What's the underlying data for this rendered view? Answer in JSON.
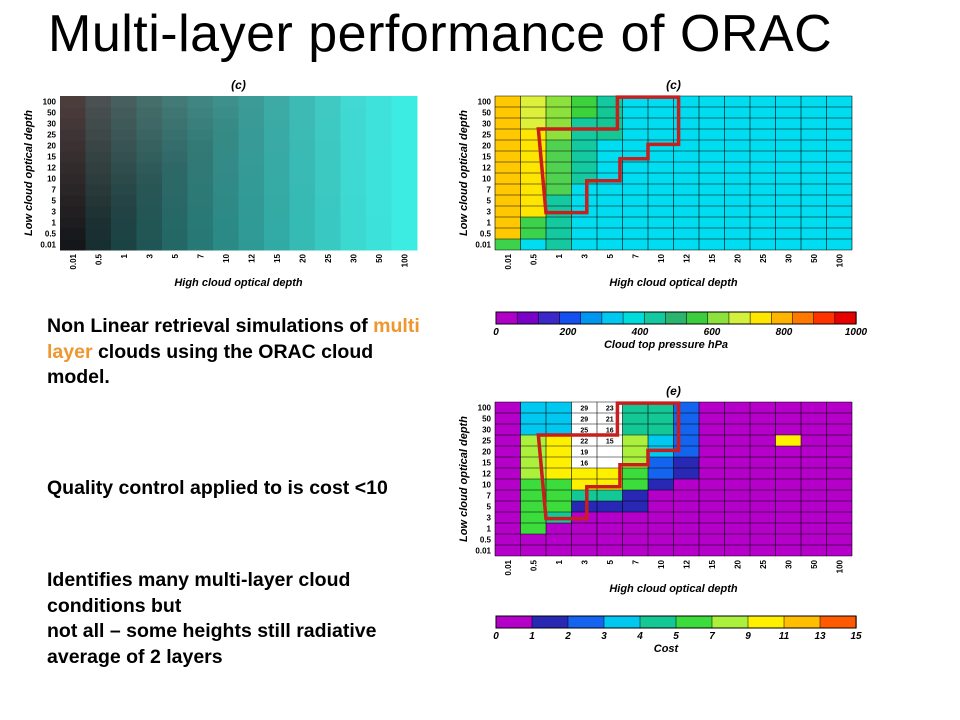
{
  "title": "Multi-layer performance of ORAC",
  "axes": {
    "x_title": "High cloud optical depth",
    "y_title": "Low cloud optical depth",
    "ticks": [
      "0.01",
      "0.5",
      "1",
      "3",
      "5",
      "7",
      "10",
      "12",
      "15",
      "20",
      "25",
      "30",
      "50",
      "100"
    ]
  },
  "panels": {
    "rgb_label": "(c)",
    "ctp_label": "(c)",
    "cost_label": "(e)"
  },
  "colorbars": {
    "ctp": {
      "title": "Cloud top pressure hPa",
      "ticks": [
        "0",
        "200",
        "400",
        "600",
        "800",
        "1000"
      ],
      "colors": [
        "#b000c8",
        "#7a00c8",
        "#3c28c8",
        "#1450f0",
        "#0096f0",
        "#00c8f0",
        "#00dcdc",
        "#14c8a0",
        "#2ab46e",
        "#3ccd3c",
        "#8ce13c",
        "#d2f03c",
        "#ffe600",
        "#ffb400",
        "#ff7800",
        "#ff3200",
        "#e60000"
      ]
    },
    "cost": {
      "title": "Cost",
      "ticks": [
        "0",
        "1",
        "2",
        "3",
        "4",
        "5",
        "7",
        "9",
        "11",
        "13",
        "15"
      ],
      "colors": [
        "#b400c8",
        "#2828b4",
        "#1464f0",
        "#00c8f0",
        "#14c896",
        "#3cdc3c",
        "#aaf03c",
        "#fff000",
        "#ffbe00",
        "#ff5a00"
      ]
    }
  },
  "text_block": {
    "p1_before": "Non Linear retrieval simulations of ",
    "p1_highlight": "multi layer",
    "p1_after": " clouds using the ORAC cloud model.",
    "p2": "Quality control applied to  is cost <10",
    "p3_line1": "Identifies many multi-layer cloud conditions but",
    "p3_line2": "not all – some heights still radiative average of 2 layers"
  },
  "cost_numbers": [
    [
      "29",
      "23"
    ],
    [
      "29",
      "21"
    ],
    [
      "25",
      "16"
    ],
    [
      "22",
      "15"
    ],
    [
      "19",
      ""
    ],
    [
      "16",
      ""
    ]
  ]
}
